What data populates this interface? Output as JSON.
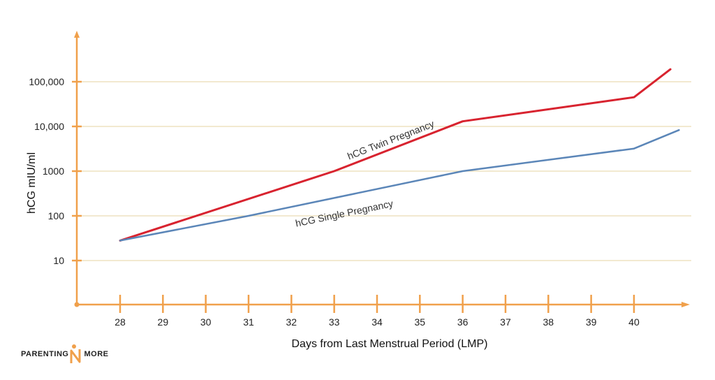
{
  "chart_data": {
    "type": "line",
    "title": "",
    "xlabel": "Days from Last Menstrual Period (LMP)",
    "ylabel": "hCG mIU/ml",
    "y_scale": "log",
    "ylim": [
      1,
      100000
    ],
    "xlim": [
      27,
      41.1
    ],
    "grid": true,
    "x_ticks": [
      28,
      29,
      30,
      31,
      32,
      33,
      34,
      35,
      36,
      37,
      38,
      39,
      40
    ],
    "y_ticks": [
      10,
      100,
      1000,
      10000,
      100000
    ],
    "y_tick_labels": [
      "10",
      "100",
      "1000",
      "10,000",
      "100,000"
    ],
    "axis_color": "#f0a04b",
    "grid_color": "#eadcb5",
    "series": [
      {
        "name": "hCG Twin Pregnancy",
        "color": "#d8232f",
        "x": [
          28,
          33,
          36,
          40,
          40.85
        ],
        "y": [
          28,
          1000,
          13000,
          45000,
          190000
        ]
      },
      {
        "name": "hCG Single Pregnancy",
        "color": "#5b86b8",
        "x": [
          28,
          31,
          36,
          40,
          41.05
        ],
        "y": [
          28,
          100,
          1000,
          3200,
          8300
        ]
      }
    ]
  },
  "watermark": {
    "left_text": "PARENTING",
    "right_text": "MORE",
    "accent_color": "#f0a04b"
  }
}
